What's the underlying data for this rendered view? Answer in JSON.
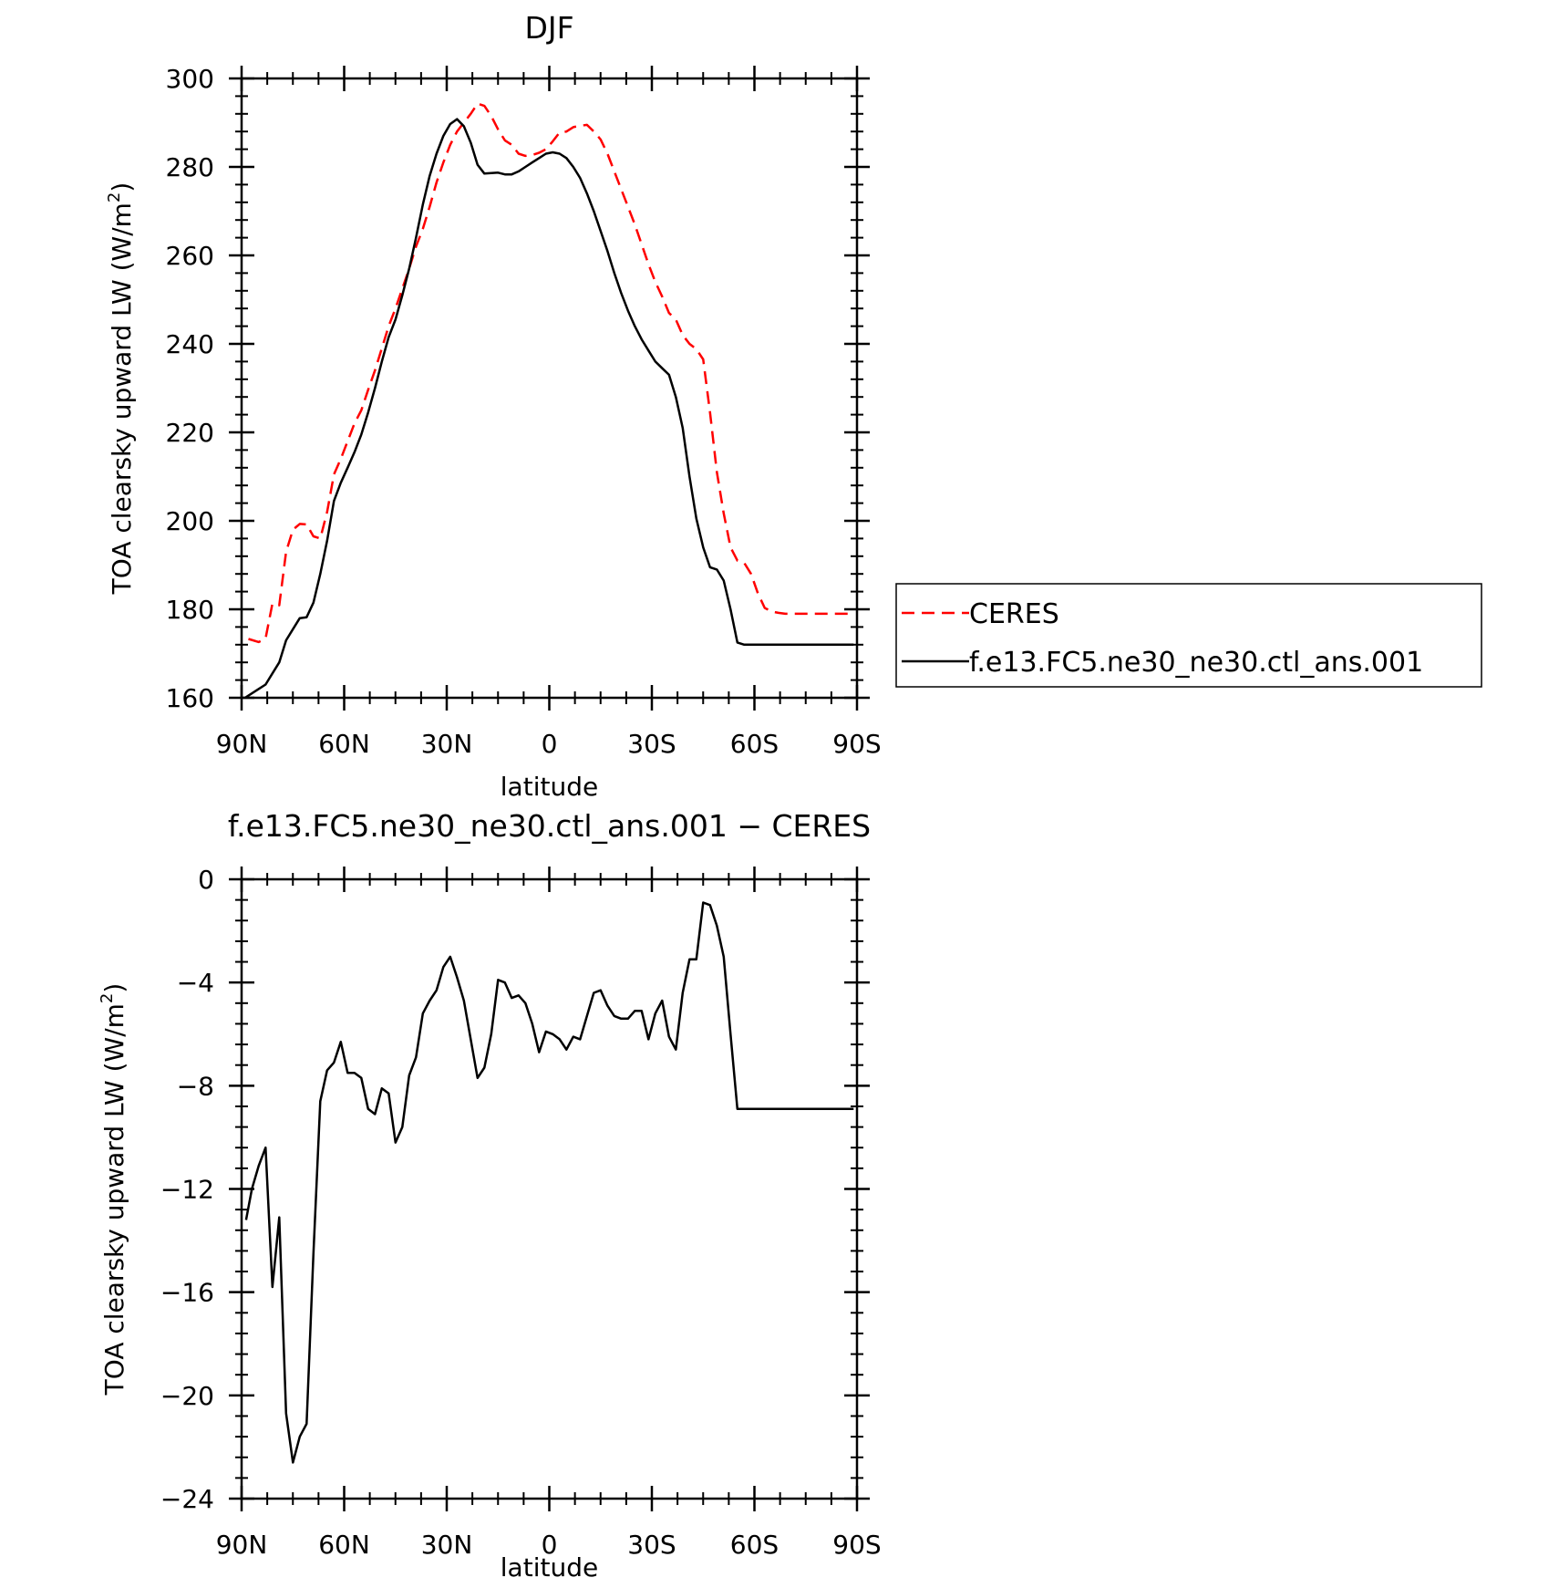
{
  "chart_data": [
    {
      "type": "line",
      "title": "DJF",
      "xlabel": "latitude",
      "ylabel": "TOA clearsky upward LW (W/m²)",
      "xlim": [
        90,
        -90
      ],
      "ylim": [
        160,
        300
      ],
      "x_ticks": [
        {
          "value": 90,
          "label": "90N"
        },
        {
          "value": 60,
          "label": "60N"
        },
        {
          "value": 30,
          "label": "30N"
        },
        {
          "value": 0,
          "label": "0"
        },
        {
          "value": -30,
          "label": "30S"
        },
        {
          "value": -60,
          "label": "60S"
        },
        {
          "value": -90,
          "label": "90S"
        }
      ],
      "y_ticks": [
        {
          "value": 300,
          "label": "300"
        },
        {
          "value": 280,
          "label": "280"
        },
        {
          "value": 260,
          "label": "260"
        },
        {
          "value": 240,
          "label": "240"
        },
        {
          "value": 220,
          "label": "220"
        },
        {
          "value": 200,
          "label": "200"
        },
        {
          "value": 180,
          "label": "180"
        },
        {
          "value": 160,
          "label": "160"
        }
      ],
      "legend_position": "right",
      "series": [
        {
          "name": "CERES",
          "color": "#ff0000",
          "dashed": true,
          "x": [
            88,
            85,
            83,
            81,
            79,
            77,
            75,
            73,
            71,
            69,
            67,
            65,
            63,
            61,
            59,
            57,
            55,
            53,
            51,
            49,
            47,
            45,
            43,
            41,
            39,
            37,
            35,
            33,
            31,
            29,
            27,
            25,
            23,
            21,
            19,
            17,
            15,
            13,
            11,
            9,
            7,
            5,
            3,
            1,
            -1,
            -3,
            -5,
            -7,
            -9,
            -11,
            -13,
            -15,
            -17,
            -19,
            -21,
            -23,
            -25,
            -27,
            -29,
            -31,
            -33,
            -35,
            -37,
            -39,
            -41,
            -43,
            -45,
            -47,
            -49,
            -51,
            -53,
            -55,
            -57,
            -59,
            -61,
            -63,
            -65,
            -67,
            -69,
            -71,
            -73,
            -75,
            -77,
            -79,
            -81,
            -83,
            -85,
            -87,
            -89
          ],
          "values": [
            173.3,
            172.6,
            173.4,
            181.3,
            180.9,
            193.0,
            198.0,
            199.3,
            199.2,
            196.5,
            196.0,
            202.0,
            210.5,
            214.0,
            218.0,
            222.0,
            225.0,
            229.6,
            234.0,
            239.0,
            244.0,
            248.0,
            252.5,
            257.0,
            262.0,
            266.0,
            271.0,
            276.5,
            281.0,
            285.0,
            288.0,
            290.0,
            292.0,
            294.3,
            293.8,
            291.5,
            288.5,
            286.0,
            285.0,
            283.0,
            282.5,
            282.7,
            283.2,
            284.0,
            285.8,
            287.8,
            288.0,
            289.0,
            289.3,
            289.5,
            288.0,
            286.2,
            283.0,
            279.0,
            275.0,
            271.0,
            267.0,
            262.5,
            258.0,
            254.0,
            250.7,
            247.0,
            245.5,
            242.0,
            240.0,
            238.8,
            236.5,
            224.5,
            211.0,
            201.7,
            194.0,
            191.0,
            190.5,
            188.0,
            183.6,
            180.3,
            179.5,
            179.2,
            179.0,
            179.0,
            179.0,
            179.0,
            179.0,
            179.0,
            179.0,
            179.0,
            179.0,
            179.0,
            179.0
          ]
        },
        {
          "name": "f.e13.FC5.ne30_ne30.ctl_ans.001",
          "color": "#000000",
          "dashed": false,
          "x": [
            89,
            85,
            83,
            81,
            79,
            77,
            75,
            73,
            71,
            69,
            67,
            65,
            63,
            61,
            59,
            57,
            55,
            53,
            51,
            49,
            47,
            45,
            43,
            41,
            39,
            37,
            35,
            33,
            31,
            29,
            27,
            25,
            23,
            21,
            19,
            17,
            15,
            13,
            11,
            9,
            7,
            5,
            3,
            1,
            -1,
            -3,
            -5,
            -7,
            -9,
            -11,
            -13,
            -15,
            -17,
            -19,
            -21,
            -23,
            -25,
            -27,
            -29,
            -31,
            -33,
            -35,
            -37,
            -39,
            -41,
            -43,
            -45,
            -47,
            -49,
            -51,
            -53,
            -55,
            -57,
            -59,
            -61,
            -63,
            -65,
            -67,
            -69,
            -71,
            -73,
            -75,
            -77,
            -79,
            -81,
            -83,
            -85,
            -87,
            -89
          ],
          "values": [
            160.0,
            162.0,
            163.0,
            165.5,
            168.0,
            173.0,
            175.5,
            178.0,
            178.2,
            181.5,
            188.0,
            195.5,
            204.5,
            208.6,
            212.0,
            215.5,
            219.5,
            224.5,
            230.0,
            236.0,
            241.5,
            245.5,
            251.0,
            257.0,
            264.0,
            271.5,
            278.0,
            283.0,
            287.0,
            289.7,
            290.8,
            289.2,
            285.5,
            280.5,
            278.5,
            278.6,
            278.7,
            278.3,
            278.3,
            279.0,
            280.0,
            281.0,
            282.0,
            283.0,
            283.3,
            283.0,
            282.0,
            280.0,
            277.5,
            274.0,
            270.0,
            265.5,
            261.0,
            256.0,
            251.5,
            247.5,
            244.0,
            241.0,
            238.5,
            236.0,
            234.5,
            233.0,
            228.0,
            221.0,
            210.0,
            200.5,
            194.0,
            189.5,
            189.0,
            186.5,
            180.0,
            172.5,
            172.0,
            172.0,
            172.0,
            172.0,
            172.0,
            172.0,
            172.0,
            172.0,
            172.0,
            172.0,
            172.0,
            172.0,
            172.0,
            172.0,
            172.0,
            172.0,
            172.0
          ]
        }
      ]
    },
    {
      "type": "line",
      "title": "f.e13.FC5.ne30_ne30.ctl_ans.001 − CERES",
      "xlabel": "latitude",
      "ylabel": "TOA clearsky upward LW (W/m²)",
      "xlim": [
        90,
        -90
      ],
      "ylim": [
        -24,
        0
      ],
      "x_ticks": [
        {
          "value": 90,
          "label": "90N"
        },
        {
          "value": 60,
          "label": "60N"
        },
        {
          "value": 30,
          "label": "30N"
        },
        {
          "value": 0,
          "label": "0"
        },
        {
          "value": -30,
          "label": "30S"
        },
        {
          "value": -60,
          "label": "60S"
        },
        {
          "value": -90,
          "label": "90S"
        }
      ],
      "y_ticks": [
        {
          "value": 0,
          "label": "0"
        },
        {
          "value": -4,
          "label": "−4"
        },
        {
          "value": -8,
          "label": "−8"
        },
        {
          "value": -12,
          "label": "−12"
        },
        {
          "value": -16,
          "label": "−16"
        },
        {
          "value": -20,
          "label": "−20"
        },
        {
          "value": -24,
          "label": "−24"
        }
      ],
      "series": [
        {
          "color": "#000000",
          "dashed": false,
          "x": [
            88.7,
            87,
            85,
            83,
            81,
            79,
            77,
            75,
            73,
            71,
            69,
            67,
            65,
            63,
            61,
            59,
            57,
            55,
            53,
            51,
            49,
            47,
            45,
            43,
            41,
            39,
            37,
            35,
            33,
            31,
            29,
            27,
            25,
            23,
            21,
            19,
            17,
            15,
            13,
            11,
            9,
            7,
            5,
            3,
            1,
            -1,
            -3,
            -5,
            -7,
            -9,
            -11,
            -13,
            -15,
            -17,
            -19,
            -21,
            -23,
            -25,
            -27,
            -29,
            -31,
            -33,
            -35,
            -37,
            -39,
            -41,
            -43,
            -45,
            -47,
            -49,
            -51,
            -53,
            -55,
            -57,
            -59,
            -61,
            -63,
            -65,
            -67,
            -69,
            -71,
            -73,
            -75,
            -77,
            -79,
            -81,
            -83,
            -85,
            -87,
            -89
          ],
          "values": [
            -13.2,
            -12.0,
            -11.1,
            -10.4,
            -15.8,
            -13.1,
            -20.7,
            -22.6,
            -21.6,
            -21.1,
            -14.5,
            -8.6,
            -7.4,
            -7.1,
            -6.3,
            -7.5,
            -7.5,
            -7.7,
            -8.9,
            -9.1,
            -8.1,
            -8.3,
            -10.2,
            -9.6,
            -7.6,
            -6.9,
            -5.2,
            -4.7,
            -4.3,
            -3.4,
            -3.0,
            -3.8,
            -4.7,
            -6.2,
            -7.7,
            -7.3,
            -6.0,
            -3.9,
            -4.0,
            -4.6,
            -4.5,
            -4.8,
            -5.6,
            -6.7,
            -5.9,
            -6.0,
            -6.2,
            -6.6,
            -6.1,
            -6.2,
            -5.3,
            -4.4,
            -4.3,
            -4.9,
            -5.3,
            -5.4,
            -5.4,
            -5.1,
            -5.1,
            -6.2,
            -5.2,
            -4.7,
            -6.1,
            -6.6,
            -4.4,
            -3.1,
            -3.1,
            -0.9,
            -1.0,
            -1.8,
            -3.0,
            -6.0,
            -8.9,
            -8.9,
            -8.9,
            -8.9,
            -8.9,
            -8.9,
            -8.9,
            -8.9,
            -8.9,
            -8.9,
            -8.9,
            -8.9,
            -8.9,
            -8.9,
            -8.9,
            -8.9,
            -8.9,
            -8.9
          ]
        }
      ]
    }
  ]
}
